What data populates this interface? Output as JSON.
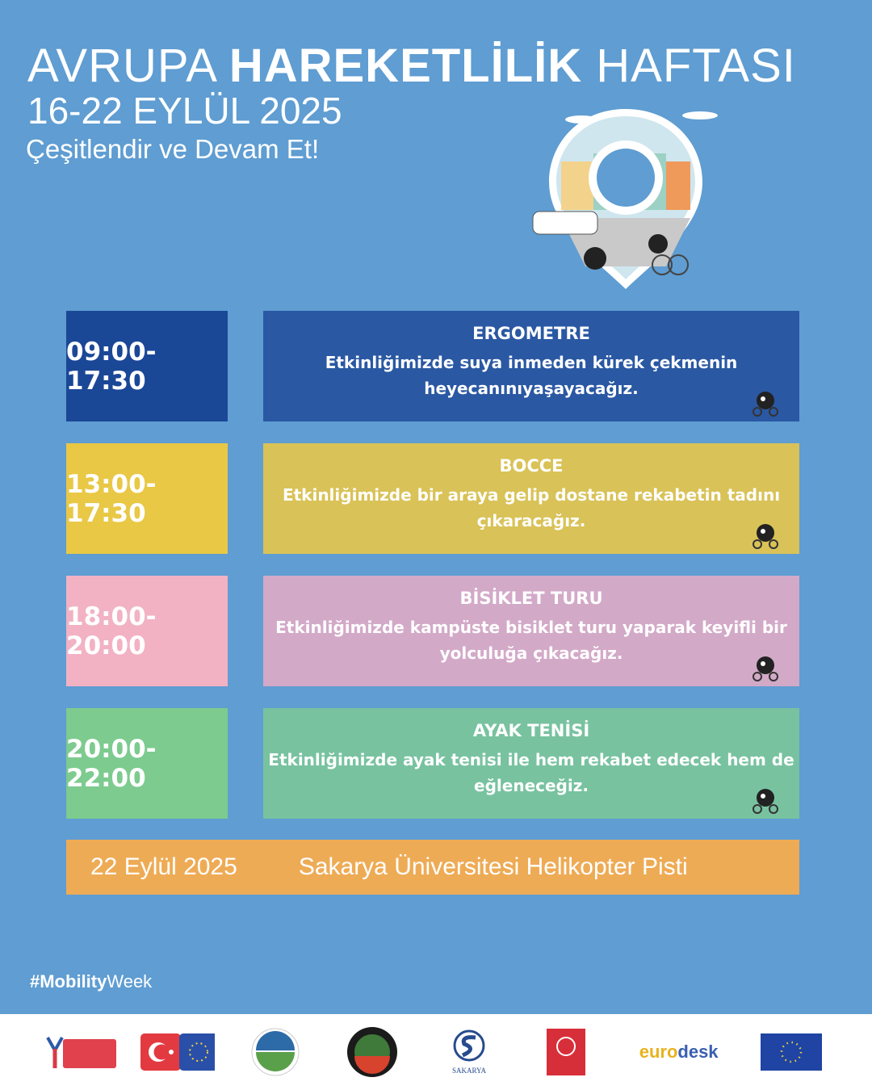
{
  "header": {
    "title_part1": "AVRUPA",
    "title_bold": "HAREKETLİLİK",
    "title_part2": "HAFTASI",
    "dates": "16-22 EYLÜL 2025",
    "slogan": "Çeşitlendir ve Devam Et!"
  },
  "events": [
    {
      "time": "09:00-17:30",
      "title": "ERGOMETRE",
      "text": "Etkinliğimizde suya inmeden kürek çekmenin heyecanınıyaşayacağız.",
      "time_color": "#1b4797",
      "desc_color": "#2a58a3",
      "icon": "car-mascot-icon"
    },
    {
      "time": "13:00-17:30",
      "title": "BOCCE",
      "text": "Etkinliğimizde bir araya gelip dostane rekabetin tadını çıkaracağız.",
      "time_color": "#e8c845",
      "desc_color": "#d9c257",
      "icon": "skateboard-mascot-icon"
    },
    {
      "time": "18:00-20:00",
      "title": "BİSİKLET TURU",
      "text": "Etkinliğimizde kampüste bisiklet turu yaparak keyifli bir yolculuğa çıkacağız.",
      "time_color": "#f2b2c4",
      "desc_color": "#d3a9c8",
      "icon": "bicycle-mascot-icon"
    },
    {
      "time": "20:00-22:00",
      "title": "AYAK TENİSİ",
      "text": "Etkinliğimizde ayak tenisi ile hem rekabet edecek hem de eğleneceğiz.",
      "time_color": "#7dcb8f",
      "desc_color": "#78c2a0",
      "icon": "running-mascot-icon"
    }
  ],
  "footer": {
    "date": "22 Eylül 2025",
    "location": "Sakarya Üniversitesi Helikopter Pisti"
  },
  "hashtag": {
    "bold": "#Mobility",
    "normal": "Week"
  },
  "logos": [
    "ulusal-ajans-logo",
    "turkey-eu-flag-logo",
    "sakarya-municipality-logo",
    "sakarya-city-logo",
    "sakarya-university-logo",
    "ministry-youth-sports-logo",
    "eurodesk-logo",
    "eu-flag-logo"
  ],
  "logo_text": {
    "sakarya": "SAKARYA",
    "eurodesk_a": "euro",
    "eurodesk_b": "desk"
  }
}
